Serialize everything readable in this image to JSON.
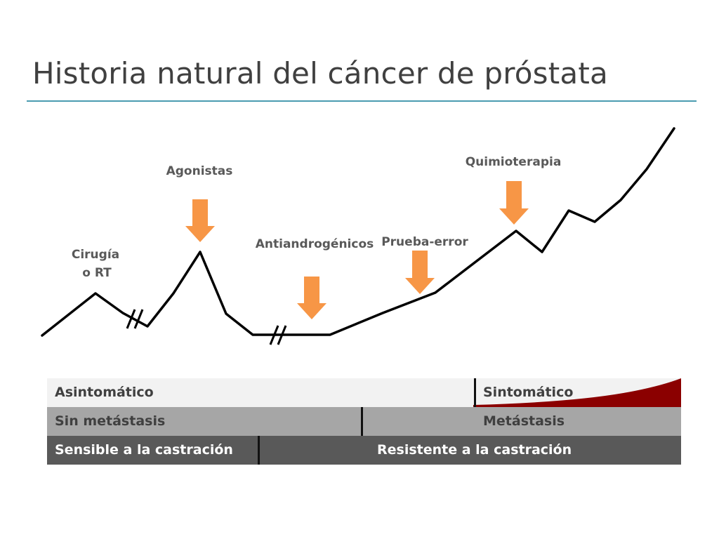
{
  "title": "Historia natural del cáncer de próstata",
  "annotations": {
    "cirugia_line1": "Cirugía",
    "cirugia_line2": "o RT",
    "agonistas": "Agonistas",
    "antiandrogenicos": "Antiandrogénicos",
    "prueba_error": "Prueba-error",
    "quimioterapia": "Quimioterapia"
  },
  "bands": {
    "symptoms": {
      "left": "Asintomático",
      "right": "Sintomático"
    },
    "metastasis": {
      "left": "Sin metástasis",
      "right": "Metástasis"
    },
    "castration": {
      "left": "Sensible a la castración",
      "right": "Resistente a la castración"
    }
  },
  "colors": {
    "arrow": "#f79646",
    "curve": "#000000",
    "symptom_wedge": "#8b0000",
    "rule": "#4a9bb0"
  }
}
